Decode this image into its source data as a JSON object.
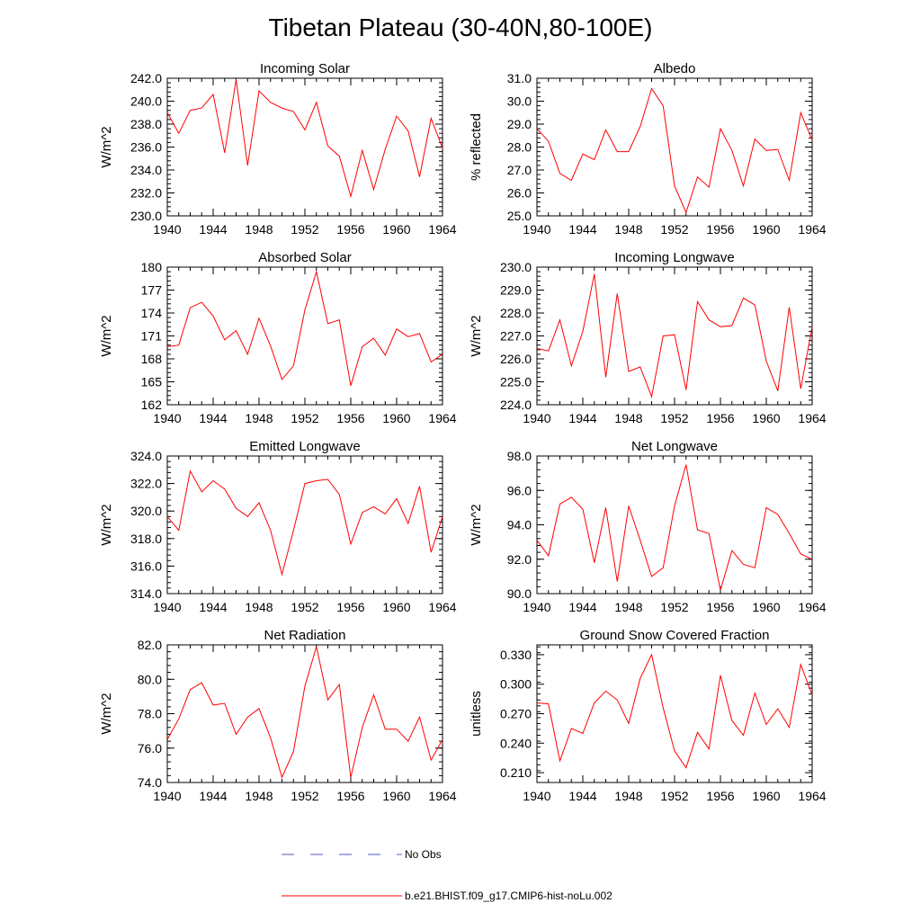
{
  "figure": {
    "title": "Tibetan Plateau (30-40N,80-100E)"
  },
  "legend": {
    "entries": [
      {
        "label": "No Obs",
        "color": "#5555cc",
        "style": "dashed"
      },
      {
        "label": "b.e21.BHIST.f09_g17.CMIP6-hist-noLu.002",
        "color": "#ff0000",
        "style": "solid"
      }
    ]
  },
  "chart_data": [
    {
      "type": "line",
      "title": "Incoming Solar",
      "ylabel": "W/m^2",
      "xlim": [
        1940,
        1964
      ],
      "ylim": [
        230.0,
        242.0
      ],
      "xticks": [
        "1940",
        "1944",
        "1948",
        "1952",
        "1956",
        "1960",
        "1964"
      ],
      "yticks": [
        "230.0",
        "232.0",
        "234.0",
        "236.0",
        "238.0",
        "240.0",
        "242.0"
      ],
      "series": [
        {
          "color": "#ff0000",
          "x": [
            1940,
            1941,
            1942,
            1943,
            1944,
            1945,
            1946,
            1947,
            1948,
            1949,
            1950,
            1951,
            1952,
            1953,
            1954,
            1955,
            1956,
            1957,
            1958,
            1959,
            1960,
            1961,
            1962,
            1963,
            1964
          ],
          "values": [
            239.0,
            237.2,
            239.2,
            239.4,
            240.6,
            235.5,
            241.9,
            234.4,
            240.9,
            239.9,
            239.4,
            239.1,
            237.5,
            239.9,
            236.1,
            235.2,
            231.7,
            235.7,
            232.3,
            235.8,
            238.7,
            237.4,
            233.4,
            238.5,
            235.9
          ]
        }
      ]
    },
    {
      "type": "line",
      "title": "Albedo",
      "ylabel": "% reflected",
      "xlim": [
        1940,
        1964
      ],
      "ylim": [
        25.0,
        31.0
      ],
      "xticks": [
        "1940",
        "1944",
        "1948",
        "1952",
        "1956",
        "1960",
        "1964"
      ],
      "yticks": [
        "25.0",
        "26.0",
        "27.0",
        "28.0",
        "29.0",
        "30.0",
        "31.0"
      ],
      "series": [
        {
          "color": "#ff0000",
          "x": [
            1940,
            1941,
            1942,
            1943,
            1944,
            1945,
            1946,
            1947,
            1948,
            1949,
            1950,
            1951,
            1952,
            1953,
            1954,
            1955,
            1956,
            1957,
            1958,
            1959,
            1960,
            1961,
            1962,
            1963,
            1964
          ],
          "values": [
            28.8,
            28.25,
            26.85,
            26.55,
            27.7,
            27.45,
            28.75,
            27.8,
            27.8,
            28.9,
            30.55,
            29.8,
            26.3,
            25.15,
            26.7,
            26.25,
            28.8,
            27.85,
            26.3,
            28.35,
            27.85,
            27.9,
            26.55,
            29.5,
            28.3
          ]
        }
      ]
    },
    {
      "type": "line",
      "title": "Absorbed Solar",
      "ylabel": "W/m^2",
      "xlim": [
        1940,
        1964
      ],
      "ylim": [
        162,
        180
      ],
      "xticks": [
        "1940",
        "1944",
        "1948",
        "1952",
        "1956",
        "1960",
        "1964"
      ],
      "yticks": [
        "162",
        "165",
        "168",
        "171",
        "174",
        "177",
        "180"
      ],
      "series": [
        {
          "color": "#ff0000",
          "x": [
            1940,
            1941,
            1942,
            1943,
            1944,
            1945,
            1946,
            1947,
            1948,
            1949,
            1950,
            1951,
            1952,
            1953,
            1954,
            1955,
            1956,
            1957,
            1958,
            1959,
            1960,
            1961,
            1962,
            1963,
            1964
          ],
          "values": [
            169.6,
            169.8,
            174.7,
            175.4,
            173.6,
            170.5,
            171.7,
            168.6,
            173.3,
            169.7,
            165.3,
            167.1,
            174.4,
            179.4,
            172.6,
            173.1,
            164.5,
            169.6,
            170.7,
            168.5,
            171.9,
            170.9,
            171.3,
            167.6,
            168.6
          ]
        }
      ]
    },
    {
      "type": "line",
      "title": "Incoming Longwave",
      "ylabel": "W/m^2",
      "xlim": [
        1940,
        1964
      ],
      "ylim": [
        224.0,
        230.0
      ],
      "xticks": [
        "1940",
        "1944",
        "1948",
        "1952",
        "1956",
        "1960",
        "1964"
      ],
      "yticks": [
        "224.0",
        "225.0",
        "226.0",
        "227.0",
        "228.0",
        "229.0",
        "230.0"
      ],
      "series": [
        {
          "color": "#ff0000",
          "x": [
            1940,
            1941,
            1942,
            1943,
            1944,
            1945,
            1946,
            1947,
            1948,
            1949,
            1950,
            1951,
            1952,
            1953,
            1954,
            1955,
            1956,
            1957,
            1958,
            1959,
            1960,
            1961,
            1962,
            1963,
            1964
          ],
          "values": [
            226.45,
            226.35,
            227.7,
            225.7,
            227.2,
            229.7,
            225.2,
            228.85,
            225.45,
            225.65,
            224.35,
            227.0,
            227.05,
            224.65,
            228.5,
            227.7,
            227.4,
            227.45,
            228.65,
            228.35,
            225.9,
            224.6,
            228.25,
            224.7,
            227.4
          ]
        }
      ]
    },
    {
      "type": "line",
      "title": "Emitted Longwave",
      "ylabel": "W/m^2",
      "xlim": [
        1940,
        1964
      ],
      "ylim": [
        314.0,
        324.0
      ],
      "xticks": [
        "1940",
        "1944",
        "1948",
        "1952",
        "1956",
        "1960",
        "1964"
      ],
      "yticks": [
        "314.0",
        "316.0",
        "318.0",
        "320.0",
        "322.0",
        "324.0"
      ],
      "series": [
        {
          "color": "#ff0000",
          "x": [
            1940,
            1941,
            1942,
            1943,
            1944,
            1945,
            1946,
            1947,
            1948,
            1949,
            1950,
            1951,
            1952,
            1953,
            1954,
            1955,
            1956,
            1957,
            1958,
            1959,
            1960,
            1961,
            1962,
            1963,
            1964
          ],
          "values": [
            319.6,
            318.6,
            322.9,
            321.4,
            322.2,
            321.6,
            320.2,
            319.6,
            320.6,
            318.6,
            315.4,
            318.6,
            322.0,
            322.2,
            322.3,
            321.2,
            317.6,
            319.9,
            320.3,
            319.8,
            320.9,
            319.1,
            321.8,
            317.0,
            319.6
          ]
        }
      ]
    },
    {
      "type": "line",
      "title": "Net Longwave",
      "ylabel": "W/m^2",
      "xlim": [
        1940,
        1964
      ],
      "ylim": [
        90.0,
        98.0
      ],
      "xticks": [
        "1940",
        "1944",
        "1948",
        "1952",
        "1956",
        "1960",
        "1964"
      ],
      "yticks": [
        "90.0",
        "92.0",
        "94.0",
        "96.0",
        "98.0"
      ],
      "series": [
        {
          "color": "#ff0000",
          "x": [
            1940,
            1941,
            1942,
            1943,
            1944,
            1945,
            1946,
            1947,
            1948,
            1949,
            1950,
            1951,
            1952,
            1953,
            1954,
            1955,
            1956,
            1957,
            1958,
            1959,
            1960,
            1961,
            1962,
            1963,
            1964
          ],
          "values": [
            93.1,
            92.2,
            95.2,
            95.6,
            94.9,
            91.8,
            95.0,
            90.7,
            95.1,
            93.1,
            91.0,
            91.5,
            95.1,
            97.5,
            93.7,
            93.5,
            90.2,
            92.5,
            91.7,
            91.5,
            95.0,
            94.6,
            93.5,
            92.3,
            92.0
          ]
        }
      ]
    },
    {
      "type": "line",
      "title": "Net Radiation",
      "ylabel": "W/m^2",
      "xlim": [
        1940,
        1964
      ],
      "ylim": [
        74.0,
        82.0
      ],
      "xticks": [
        "1940",
        "1944",
        "1948",
        "1952",
        "1956",
        "1960",
        "1964"
      ],
      "yticks": [
        "74.0",
        "76.0",
        "78.0",
        "80.0",
        "82.0"
      ],
      "series": [
        {
          "color": "#ff0000",
          "x": [
            1940,
            1941,
            1942,
            1943,
            1944,
            1945,
            1946,
            1947,
            1948,
            1949,
            1950,
            1951,
            1952,
            1953,
            1954,
            1955,
            1956,
            1957,
            1958,
            1959,
            1960,
            1961,
            1962,
            1963,
            1964
          ],
          "values": [
            76.5,
            77.7,
            79.4,
            79.8,
            78.5,
            78.6,
            76.8,
            77.8,
            78.3,
            76.6,
            74.3,
            75.8,
            79.6,
            81.9,
            78.8,
            79.7,
            74.3,
            77.2,
            79.1,
            77.1,
            77.1,
            76.4,
            77.8,
            75.3,
            76.5
          ]
        }
      ]
    },
    {
      "type": "line",
      "title": "Ground Snow Covered Fraction",
      "ylabel": "unitless",
      "xlim": [
        1940,
        1964
      ],
      "ylim": [
        0.2,
        0.34
      ],
      "xticks": [
        "1940",
        "1944",
        "1948",
        "1952",
        "1956",
        "1960",
        "1964"
      ],
      "yticks": [
        "0.210",
        "0.240",
        "0.270",
        "0.300",
        "0.330"
      ],
      "yticks_values": [
        0.21,
        0.24,
        0.27,
        0.3,
        0.33
      ],
      "series": [
        {
          "color": "#ff0000",
          "x": [
            1940,
            1941,
            1942,
            1943,
            1944,
            1945,
            1946,
            1947,
            1948,
            1949,
            1950,
            1951,
            1952,
            1953,
            1954,
            1955,
            1956,
            1957,
            1958,
            1959,
            1960,
            1961,
            1962,
            1963,
            1964
          ],
          "values": [
            0.281,
            0.28,
            0.222,
            0.255,
            0.25,
            0.281,
            0.293,
            0.284,
            0.26,
            0.306,
            0.33,
            0.276,
            0.232,
            0.215,
            0.251,
            0.234,
            0.309,
            0.263,
            0.248,
            0.291,
            0.259,
            0.275,
            0.256,
            0.32,
            0.289
          ]
        }
      ]
    }
  ]
}
